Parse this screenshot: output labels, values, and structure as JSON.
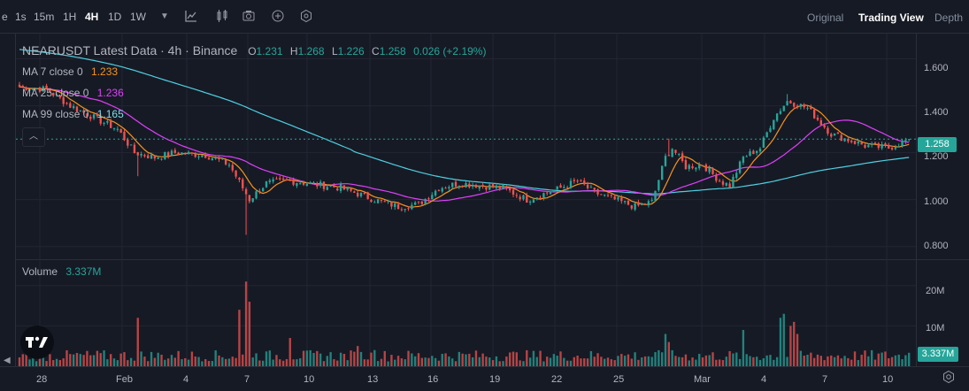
{
  "toolbar": {
    "timeframes": [
      {
        "label": "e",
        "active": false
      },
      {
        "label": "1s",
        "active": false
      },
      {
        "label": "15m",
        "active": false
      },
      {
        "label": "1H",
        "active": false
      },
      {
        "label": "4H",
        "active": true
      },
      {
        "label": "1D",
        "active": false
      },
      {
        "label": "1W",
        "active": false
      }
    ],
    "dropdown_icon": "caret-down-icon",
    "tools": [
      "line-chart-icon",
      "candlestick-icon",
      "camera-icon",
      "add-indicator-icon",
      "settings-hex-icon"
    ],
    "views": [
      {
        "label": "Original",
        "active": false
      },
      {
        "label": "Trading View",
        "active": true
      },
      {
        "label": "Depth",
        "active": false
      }
    ]
  },
  "legend": {
    "title": "NEARUSDT Latest Data · 4h · Binance",
    "o_label": "O",
    "o": "1.231",
    "h_label": "H",
    "h": "1.268",
    "l_label": "L",
    "l": "1.226",
    "c_label": "C",
    "c": "1.258",
    "change": "0.026 (+2.19%)",
    "ma7_label": "MA 7 close 0",
    "ma7_value": "1.233",
    "ma7_color": "#f7931a",
    "ma25_label": "MA 25 close 0",
    "ma25_value": "1.236",
    "ma25_color": "#e040fb",
    "ma99_label": "MA 99 close 0",
    "ma99_value": "1.165",
    "ma99_color": "#4dd0e1",
    "volume_label": "Volume",
    "volume_value": "3.337M",
    "collapse_icon": "chevron-up-icon"
  },
  "price_axis": {
    "ticks": [
      "1.600",
      "1.400",
      "1.200",
      "1.000",
      "0.800"
    ],
    "current": "1.258"
  },
  "volume_axis": {
    "ticks": [
      "20M",
      "10M"
    ],
    "current": "3.337M"
  },
  "time_axis": {
    "ticks": [
      "28",
      "Feb",
      "4",
      "7",
      "10",
      "13",
      "16",
      "19",
      "22",
      "25",
      "Mar",
      "4",
      "7",
      "10"
    ]
  },
  "logo_text": "TV",
  "colors": {
    "up": "#26a69a",
    "down": "#ef5350",
    "background": "#161a25",
    "grid": "#232632"
  },
  "chart_data": {
    "type": "candlestick",
    "symbol": "NEARUSDT",
    "interval": "4h",
    "ylim": [
      0.75,
      1.7
    ],
    "volume_ylim": [
      0,
      25
    ],
    "price_ticks": [
      1.6,
      1.4,
      1.2,
      1.0,
      0.8
    ],
    "volume_ticks": [
      20,
      10
    ],
    "time_labels": [
      "28",
      "Feb",
      "4",
      "7",
      "10",
      "13",
      "16",
      "19",
      "22",
      "25",
      "Mar",
      "4",
      "7",
      "10"
    ],
    "anchors": [
      {
        "i": 0,
        "p": 1.48
      },
      {
        "i": 8,
        "p": 1.47
      },
      {
        "i": 15,
        "p": 1.4
      },
      {
        "i": 22,
        "p": 1.35
      },
      {
        "i": 29,
        "p": 1.3
      },
      {
        "i": 34,
        "p": 1.2
      },
      {
        "i": 40,
        "p": 1.18
      },
      {
        "i": 46,
        "p": 1.2
      },
      {
        "i": 55,
        "p": 1.19
      },
      {
        "i": 62,
        "p": 1.15
      },
      {
        "i": 66,
        "p": 1.05
      },
      {
        "i": 68,
        "p": 1.0
      },
      {
        "i": 73,
        "p": 1.07
      },
      {
        "i": 80,
        "p": 1.08
      },
      {
        "i": 95,
        "p": 1.05
      },
      {
        "i": 105,
        "p": 1.0
      },
      {
        "i": 112,
        "p": 0.97
      },
      {
        "i": 118,
        "p": 0.98
      },
      {
        "i": 124,
        "p": 1.05
      },
      {
        "i": 130,
        "p": 1.07
      },
      {
        "i": 143,
        "p": 1.05
      },
      {
        "i": 150,
        "p": 1.0
      },
      {
        "i": 160,
        "p": 1.05
      },
      {
        "i": 165,
        "p": 1.08
      },
      {
        "i": 170,
        "p": 1.03
      },
      {
        "i": 176,
        "p": 1.0
      },
      {
        "i": 182,
        "p": 0.97
      },
      {
        "i": 187,
        "p": 0.99
      },
      {
        "i": 191,
        "p": 1.18
      },
      {
        "i": 193,
        "p": 1.22
      },
      {
        "i": 197,
        "p": 1.14
      },
      {
        "i": 202,
        "p": 1.15
      },
      {
        "i": 207,
        "p": 1.08
      },
      {
        "i": 210,
        "p": 1.06
      },
      {
        "i": 214,
        "p": 1.18
      },
      {
        "i": 219,
        "p": 1.22
      },
      {
        "i": 223,
        "p": 1.35
      },
      {
        "i": 227,
        "p": 1.42
      },
      {
        "i": 233,
        "p": 1.39
      },
      {
        "i": 240,
        "p": 1.28
      },
      {
        "i": 250,
        "p": 1.23
      },
      {
        "i": 257,
        "p": 1.22
      },
      {
        "i": 263,
        "p": 1.258
      }
    ],
    "spikes": [
      {
        "i": 35,
        "low": 1.1
      },
      {
        "i": 67,
        "low": 0.85
      },
      {
        "i": 192,
        "high": 1.26
      },
      {
        "i": 227,
        "high": 1.45
      }
    ],
    "volume_spikes": [
      {
        "i": 35,
        "v": 12
      },
      {
        "i": 65,
        "v": 14
      },
      {
        "i": 67,
        "v": 21
      },
      {
        "i": 68,
        "v": 16
      },
      {
        "i": 80,
        "v": 7
      },
      {
        "i": 191,
        "v": 8
      },
      {
        "i": 192,
        "v": 6
      },
      {
        "i": 225,
        "v": 12
      },
      {
        "i": 226,
        "v": 13
      },
      {
        "i": 228,
        "v": 10
      },
      {
        "i": 229,
        "v": 11
      },
      {
        "i": 230,
        "v": 8
      },
      {
        "i": 214,
        "v": 9
      },
      {
        "i": 100,
        "v": 5
      },
      {
        "i": 105,
        "v": 4
      }
    ],
    "ma7": 1.233,
    "ma25": 1.236,
    "ma99": 1.165,
    "last_close": 1.258,
    "last_volume_m": 3.337
  }
}
